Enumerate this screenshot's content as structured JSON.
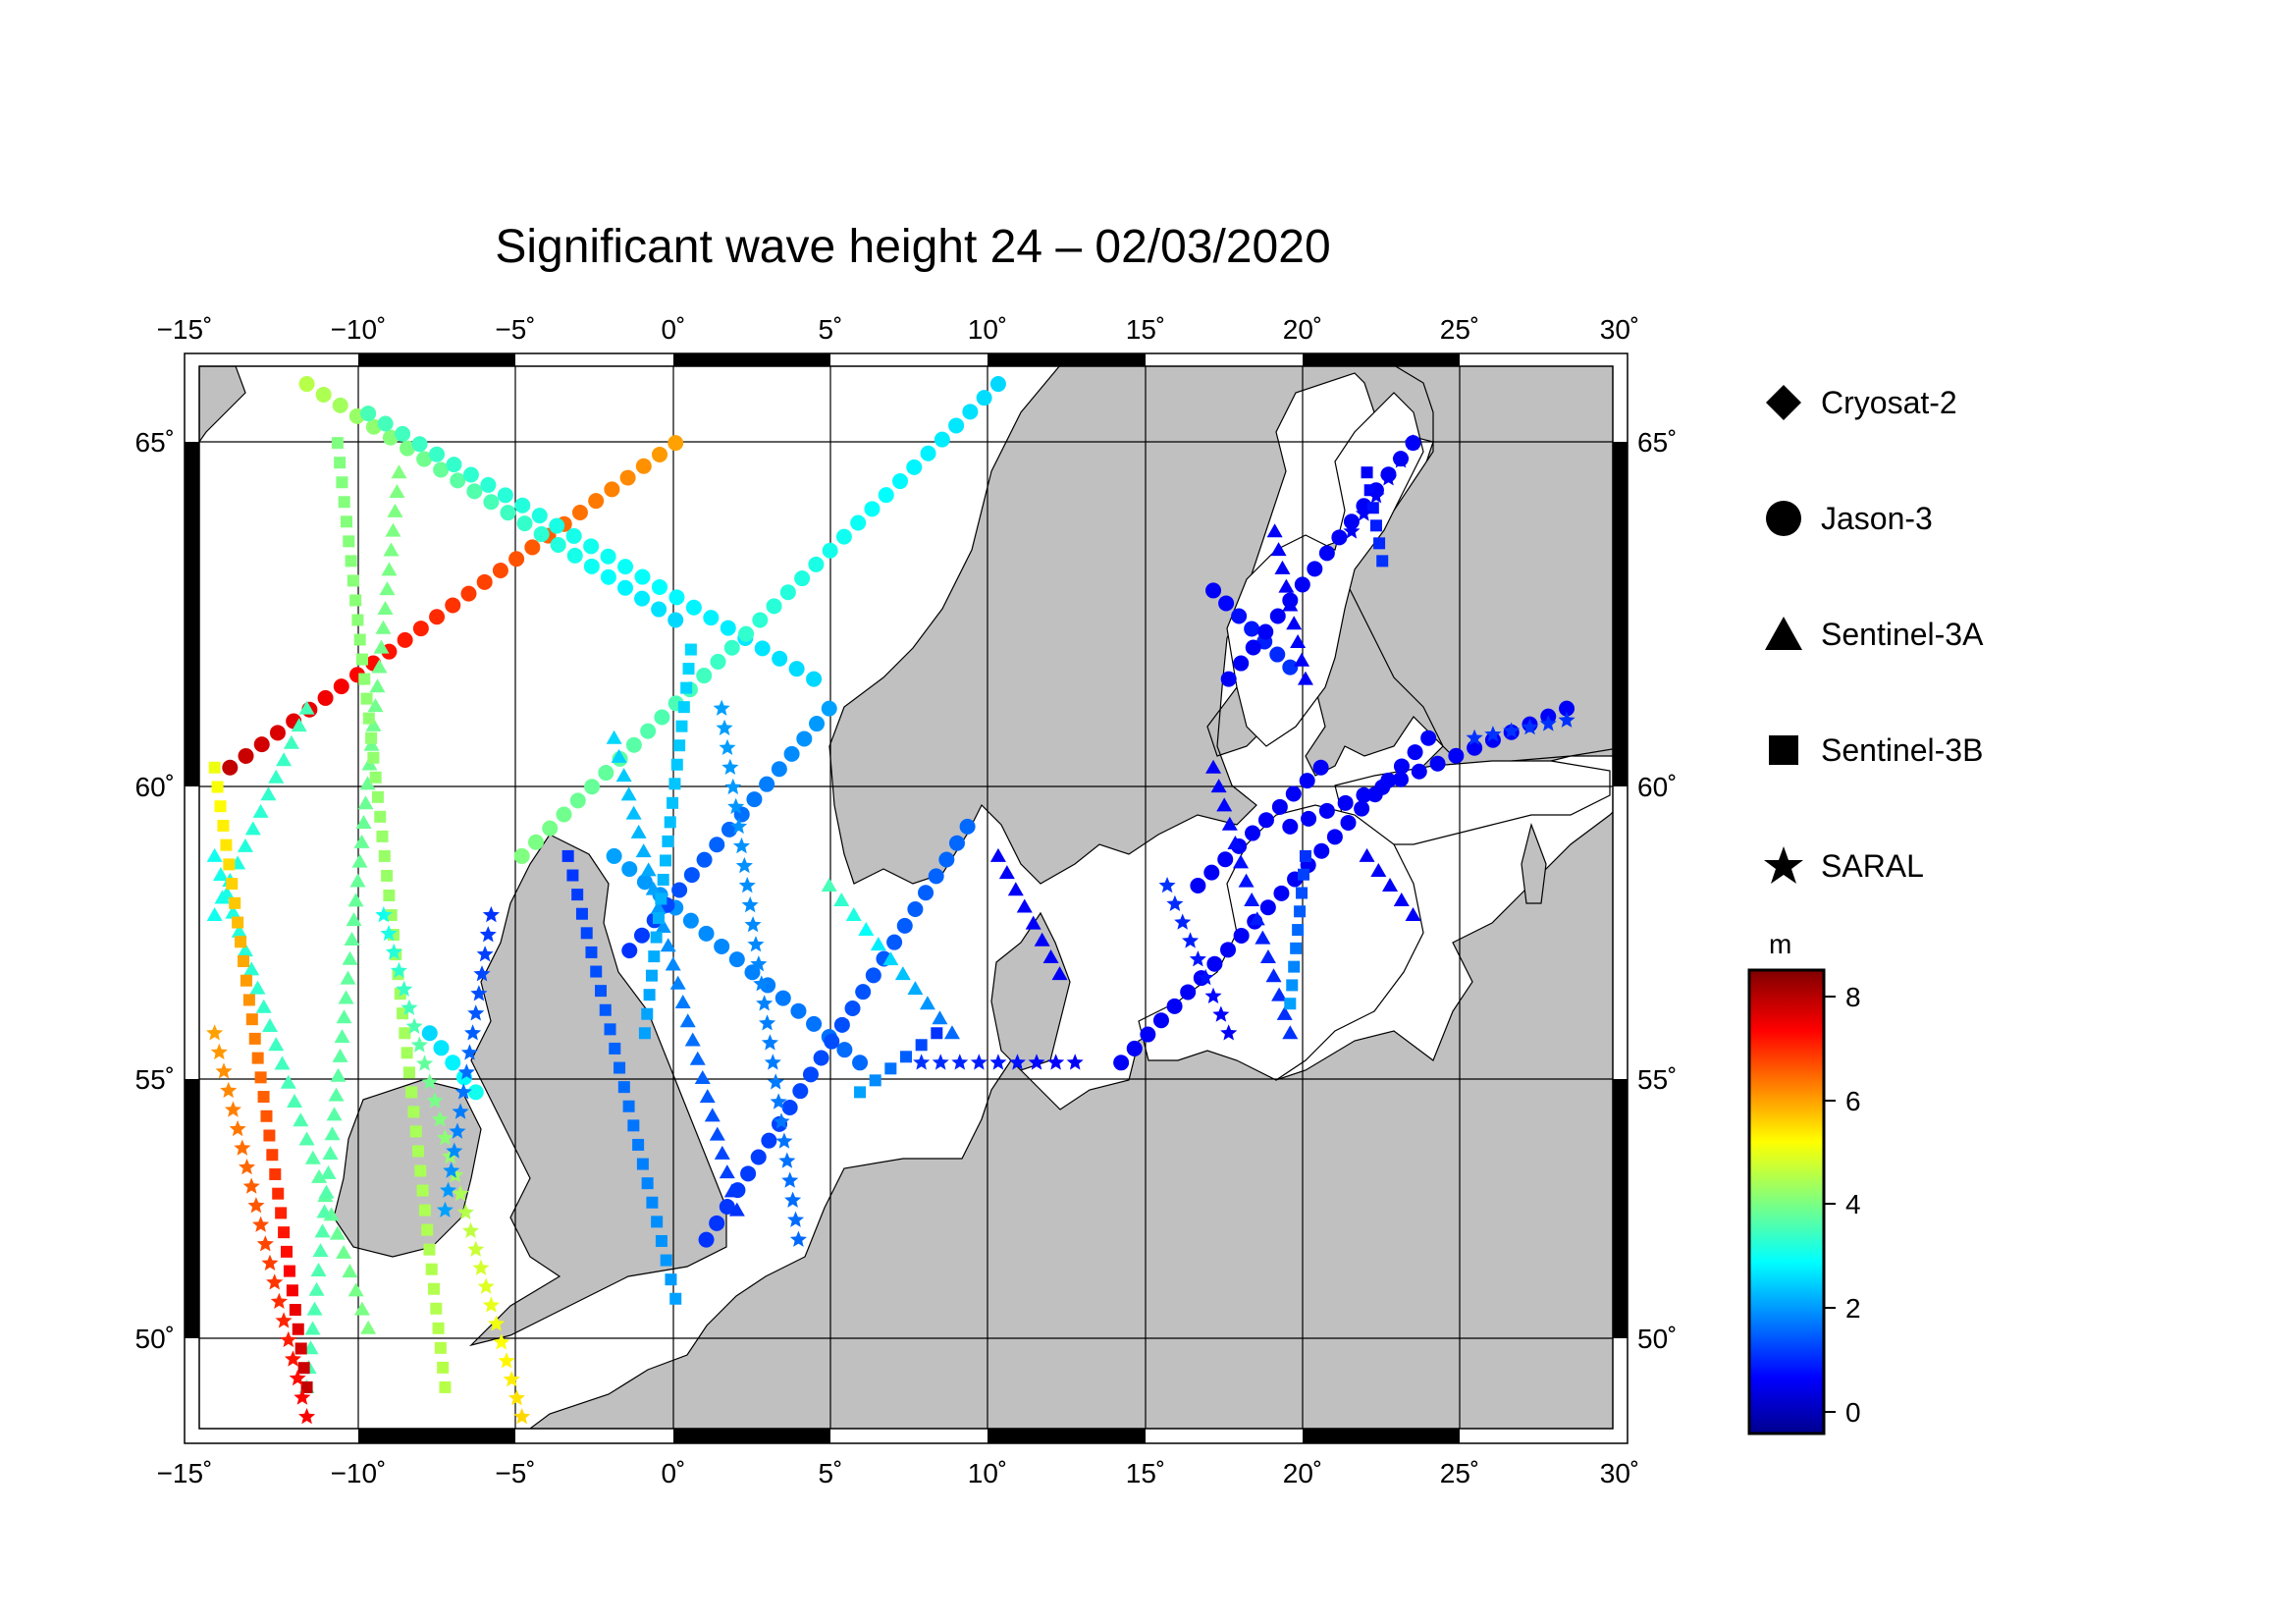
{
  "title": "Significant wave height 24 – 02/03/2020",
  "map": {
    "lon_range": [
      -15.5,
      30.5
    ],
    "lat_range": [
      48.3,
      66.3
    ],
    "lon_ticks": [
      "−15˚",
      "−10˚",
      "−5˚",
      "0˚",
      "5˚",
      "10˚",
      "15˚",
      "20˚",
      "25˚",
      "30˚"
    ],
    "lat_ticks": [
      "65˚",
      "60˚",
      "55˚",
      "50˚"
    ],
    "land_color": "#c0c0c0",
    "sea_color": "#ffffff",
    "grid": true
  },
  "legend": {
    "items": [
      {
        "label": "Cryosat-2",
        "icon": "diamond-icon"
      },
      {
        "label": "Jason-3",
        "icon": "circle-icon"
      },
      {
        "label": "Sentinel-3A",
        "icon": "triangle-icon"
      },
      {
        "label": "Sentinel-3B",
        "icon": "square-icon"
      },
      {
        "label": "SARAL",
        "icon": "star-icon"
      }
    ]
  },
  "colorbar": {
    "unit": "m",
    "min": -0.6,
    "max": 8.6,
    "ticks": [
      "8",
      "6",
      "4",
      "2",
      "0"
    ],
    "colormap": "jet"
  },
  "chart_data": {
    "type": "scatter",
    "title": "Significant wave height 24 – 02/03/2020",
    "xlabel": "",
    "ylabel": "",
    "xlim": [
      -15.5,
      30.5
    ],
    "ylim": [
      48.3,
      66.3
    ],
    "value_unit": "m",
    "series": [
      {
        "name": "Jason-3",
        "marker": "circle",
        "tracks": [
          {
            "from": [
              -14.5,
              59.5
            ],
            "to": [
              0.0,
              65.0
            ],
            "values": [
              8.0,
              6.0
            ]
          },
          {
            "from": [
              -12.0,
              66.0
            ],
            "to": [
              0.0,
              62.0
            ],
            "values": [
              4.5,
              2.5
            ]
          },
          {
            "from": [
              -10.0,
              65.5
            ],
            "to": [
              4.5,
              61.0
            ],
            "values": [
              3.5,
              2.5
            ]
          },
          {
            "from": [
              -5.0,
              58.0
            ],
            "to": [
              10.5,
              66.0
            ],
            "values": [
              4.0,
              2.5
            ]
          },
          {
            "from": [
              -2.0,
              58.0
            ],
            "to": [
              6.0,
              54.5
            ],
            "values": [
              2.0,
              1.5
            ]
          },
          {
            "from": [
              -1.5,
              56.4
            ],
            "to": [
              5.0,
              60.5
            ],
            "values": [
              1.0,
              2.0
            ]
          },
          {
            "from": [
              1.0,
              51.5
            ],
            "to": [
              9.5,
              58.5
            ],
            "values": [
              1.0,
              1.5
            ]
          },
          {
            "from": [
              -8.0,
              55.0
            ],
            "to": [
              -6.5,
              54.0
            ],
            "values": [
              2.5,
              3.0
            ]
          },
          {
            "from": [
              17.5,
              62.5
            ],
            "to": [
              20.0,
              61.2
            ],
            "values": [
              0.5,
              1.0
            ]
          },
          {
            "from": [
              18.0,
              61.0
            ],
            "to": [
              24.0,
              65.0
            ],
            "values": [
              0.5,
              0.5
            ]
          },
          {
            "from": [
              17.0,
              57.5
            ],
            "to": [
              21.0,
              59.5
            ],
            "values": [
              0.5,
              0.5
            ]
          },
          {
            "from": [
              14.5,
              54.5
            ],
            "to": [
              24.5,
              60.0
            ],
            "values": [
              0.5,
              0.5
            ]
          },
          {
            "from": [
              20.0,
              58.5
            ],
            "to": [
              29.0,
              60.5
            ],
            "values": [
              0.5,
              0.5
            ]
          }
        ]
      },
      {
        "name": "Sentinel-3A",
        "marker": "triangle",
        "tracks": [
          {
            "from": [
              -15.0,
              58.0
            ],
            "to": [
              -10.0,
              50.0
            ],
            "values": [
              3.0,
              4.0
            ]
          },
          {
            "from": [
              -12.0,
              60.5
            ],
            "to": [
              -15.0,
              57.0
            ],
            "values": [
              3.5,
              3.0
            ]
          },
          {
            "from": [
              -9.0,
              64.5
            ],
            "to": [
              -12.0,
              49.0
            ],
            "values": [
              4.0,
              3.5
            ]
          },
          {
            "from": [
              -2.0,
              60.0
            ],
            "to": [
              2.0,
              52.0
            ],
            "values": [
              2.5,
              1.0
            ]
          },
          {
            "from": [
              5.0,
              57.5
            ],
            "to": [
              9.0,
              55.0
            ],
            "values": [
              3.5,
              1.5
            ]
          },
          {
            "from": [
              10.5,
              58.0
            ],
            "to": [
              12.5,
              56.0
            ],
            "values": [
              0.5,
              0.5
            ]
          },
          {
            "from": [
              17.5,
              59.5
            ],
            "to": [
              20.0,
              55.0
            ],
            "values": [
              0.5,
              1.0
            ]
          },
          {
            "from": [
              19.5,
              63.5
            ],
            "to": [
              20.5,
              61.0
            ],
            "values": [
              0.5,
              0.5
            ]
          },
          {
            "from": [
              22.5,
              58.0
            ],
            "to": [
              24.0,
              57.0
            ],
            "values": [
              0.5,
              0.5
            ]
          }
        ]
      },
      {
        "name": "Sentinel-3B",
        "marker": "square",
        "tracks": [
          {
            "from": [
              -15.0,
              59.5
            ],
            "to": [
              -12.0,
              49.0
            ],
            "values": [
              5.0,
              8.0
            ]
          },
          {
            "from": [
              -11.0,
              65.0
            ],
            "to": [
              -7.5,
              49.0
            ],
            "values": [
              4.0,
              4.5
            ]
          },
          {
            "from": [
              -3.5,
              58.0
            ],
            "to": [
              0.0,
              50.5
            ],
            "values": [
              1.0,
              2.0
            ]
          },
          {
            "from": [
              0.5,
              61.5
            ],
            "to": [
              -1.0,
              55.0
            ],
            "values": [
              2.5,
              2.0
            ]
          },
          {
            "from": [
              6.0,
              54.0
            ],
            "to": [
              8.5,
              55.0
            ],
            "values": [
              2.0,
              1.0
            ]
          },
          {
            "from": [
              22.5,
              64.5
            ],
            "to": [
              23.0,
              63.0
            ],
            "values": [
              0.5,
              1.0
            ]
          },
          {
            "from": [
              20.0,
              55.5
            ],
            "to": [
              20.5,
              58.0
            ],
            "values": [
              2.0,
              1.0
            ]
          }
        ]
      },
      {
        "name": "SARAL",
        "marker": "star",
        "tracks": [
          {
            "from": [
              -15.0,
              55.0
            ],
            "to": [
              -12.0,
              48.5
            ],
            "values": [
              6.0,
              7.5
            ]
          },
          {
            "from": [
              -9.5,
              57.0
            ],
            "to": [
              -5.0,
              48.5
            ],
            "values": [
              3.0,
              5.5
            ]
          },
          {
            "from": [
              -6.0,
              57.0
            ],
            "to": [
              -7.5,
              52.0
            ],
            "values": [
              1.0,
              2.0
            ]
          },
          {
            "from": [
              1.5,
              60.5
            ],
            "to": [
              4.0,
              51.5
            ],
            "values": [
              2.0,
              1.5
            ]
          },
          {
            "from": [
              8.0,
              54.5
            ],
            "to": [
              13.0,
              54.5
            ],
            "values": [
              1.0,
              0.5
            ]
          },
          {
            "from": [
              18.0,
              55.0
            ],
            "to": [
              16.0,
              57.5
            ],
            "values": [
              0.5,
              1.0
            ]
          },
          {
            "from": [
              22.0,
              63.5
            ],
            "to": [
              24.0,
              65.0
            ],
            "values": [
              0.5,
              0.5
            ]
          },
          {
            "from": [
              26.0,
              60.0
            ],
            "to": [
              29.0,
              60.3
            ],
            "values": [
              1.0,
              1.0
            ]
          }
        ]
      }
    ]
  }
}
